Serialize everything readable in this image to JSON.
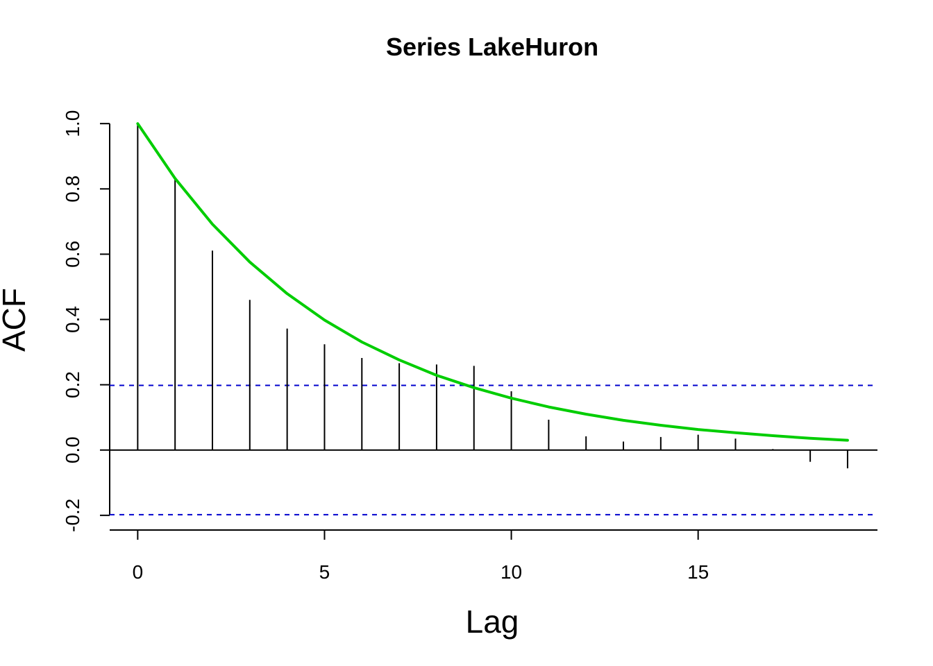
{
  "chart_data": {
    "type": "bar",
    "title": "Series  LakeHuron",
    "xlabel": "Lag",
    "ylabel": "ACF",
    "xlim": [
      -0.75,
      19.8
    ],
    "ylim": [
      -0.245,
      1.045
    ],
    "x_ticks": [
      0,
      5,
      10,
      15
    ],
    "y_ticks": [
      -0.2,
      0.0,
      0.2,
      0.4,
      0.6,
      0.8,
      1.0
    ],
    "x_tick_labels": [
      "0",
      "5",
      "10",
      "15"
    ],
    "y_tick_labels": [
      "-0.2",
      "0.0",
      "0.2",
      "0.4",
      "0.6",
      "0.8",
      "1.0"
    ],
    "series": [
      {
        "kind": "acf-spikes",
        "color": "#000000",
        "x": [
          0,
          1,
          2,
          3,
          4,
          5,
          6,
          7,
          8,
          9,
          10,
          11,
          12,
          13,
          14,
          15,
          16,
          17,
          18,
          19
        ],
        "values": [
          1.0,
          0.832,
          0.611,
          0.46,
          0.372,
          0.324,
          0.282,
          0.266,
          0.262,
          0.258,
          0.18,
          0.093,
          0.042,
          0.026,
          0.04,
          0.047,
          0.035,
          0.003,
          -0.036,
          -0.056
        ]
      },
      {
        "kind": "curve",
        "color": "#00cd00",
        "x": [
          0,
          1,
          2,
          3,
          4,
          5,
          6,
          7,
          8,
          9,
          10,
          11,
          12,
          13,
          14,
          15,
          16,
          17,
          18,
          19
        ],
        "values": [
          1.0,
          0.832,
          0.692,
          0.576,
          0.479,
          0.398,
          0.331,
          0.276,
          0.229,
          0.191,
          0.159,
          0.132,
          0.11,
          0.091,
          0.076,
          0.063,
          0.053,
          0.044,
          0.036,
          0.03
        ]
      }
    ],
    "confidence_bounds": {
      "color": "#0000cd",
      "style": "dashed",
      "values": [
        0.198,
        -0.198
      ]
    },
    "zero_line": true,
    "grid": false,
    "legend": "none"
  }
}
